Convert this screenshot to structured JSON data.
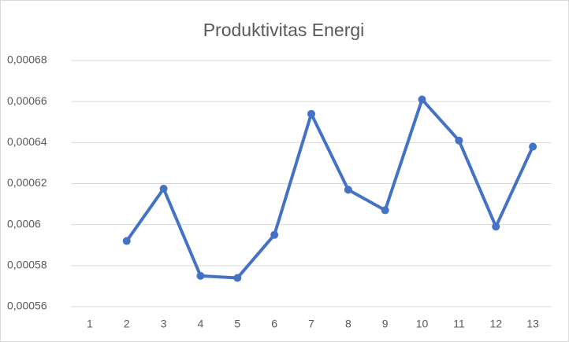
{
  "chart_data": {
    "type": "line",
    "title": "Produktivitas Energi",
    "categories": [
      "1",
      "2",
      "3",
      "4",
      "5",
      "6",
      "7",
      "8",
      "9",
      "10",
      "11",
      "12",
      "13"
    ],
    "series": [
      {
        "name": "Produktivitas Energi",
        "color": "#4472c4",
        "values": [
          null,
          0.000592,
          0.0006175,
          0.000575,
          0.000574,
          0.000595,
          0.000654,
          0.000617,
          0.000607,
          0.000661,
          0.000641,
          0.000599,
          0.000638
        ]
      }
    ],
    "ylim": [
      0.00056,
      0.00068
    ],
    "yticks": [
      {
        "value": 0.00056,
        "label": "0,00056"
      },
      {
        "value": 0.00058,
        "label": "0,00058"
      },
      {
        "value": 0.0006,
        "label": "0,0006"
      },
      {
        "value": 0.00062,
        "label": "0,00062"
      },
      {
        "value": 0.00064,
        "label": "0,00064"
      },
      {
        "value": 0.00066,
        "label": "0,00066"
      },
      {
        "value": 0.00068,
        "label": "0,00068"
      }
    ],
    "grid": true
  }
}
